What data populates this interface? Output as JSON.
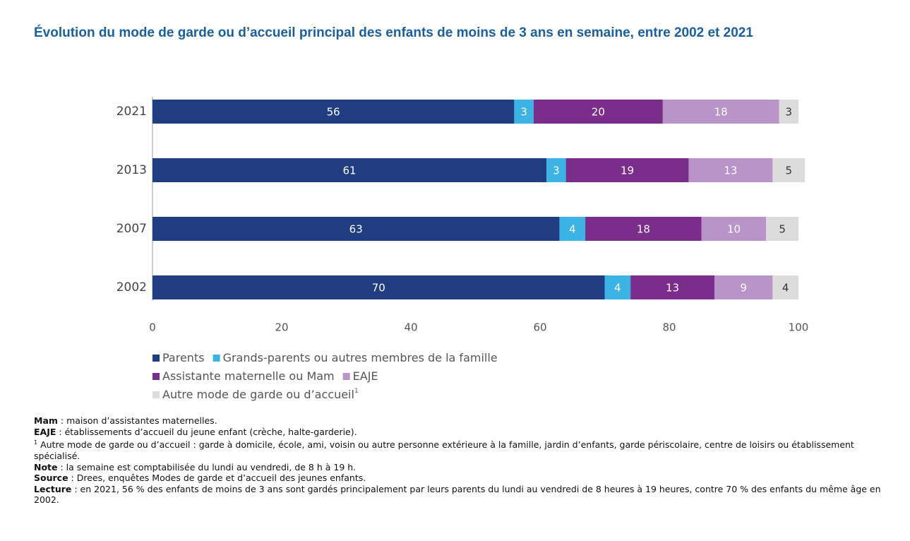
{
  "chart_data": {
    "type": "stacked-barh",
    "title": "Évolution du mode de garde ou d’accueil principal des enfants de moins de 3 ans en semaine, entre 2002 et 2021",
    "categories": [
      "2021",
      "2013",
      "2007",
      "2002"
    ],
    "series": [
      {
        "name": "Parents",
        "color": "#1f3d80",
        "values": [
          56,
          61,
          63,
          70
        ]
      },
      {
        "name": "Grands-parents ou autres membres de la famille",
        "color": "#3bb4e5",
        "values": [
          3,
          3,
          4,
          4
        ]
      },
      {
        "name": "Assistante maternelle ou Mam",
        "color": "#7b2d8b",
        "values": [
          20,
          19,
          18,
          13
        ]
      },
      {
        "name": "EAJE",
        "color": "#b994c8",
        "values": [
          18,
          13,
          10,
          9
        ]
      },
      {
        "name": "Autre mode de garde ou d’accueil",
        "footnote": "1",
        "color": "#dcdcdc",
        "values": [
          3,
          5,
          5,
          4
        ]
      }
    ],
    "xlim": [
      0,
      100
    ],
    "xticks": [
      0,
      20,
      40,
      60,
      80,
      100
    ]
  },
  "notes": [
    {
      "term": "Mam",
      "text": ": maison d’assistantes maternelles."
    },
    {
      "term": "EAJE",
      "text": ": établissements d’accueil du jeune enfant (crèche, halte-garderie)."
    },
    {
      "marker": "1",
      "text": "Autre mode de garde ou d’accueil : garde à domicile, école, ami, voisin ou autre personne extérieure à la famille, jardin d’enfants, garde périscolaire, centre de loisirs ou établissement spécialisé."
    },
    {
      "term": "Note",
      "text": ": la semaine est comptabilisée du lundi au vendredi, de 8 h à 19 h."
    },
    {
      "term": "Source",
      "text": ": Drees, enquêtes Modes de garde et d’accueil des jeunes enfants."
    },
    {
      "term": "Lecture",
      "text": ": en 2021, 56 % des enfants de moins de 3 ans sont gardés principalement par leurs parents du lundi au vendredi de 8 heures à 19 heures, contre 70 % des enfants du même âge en 2002."
    }
  ]
}
